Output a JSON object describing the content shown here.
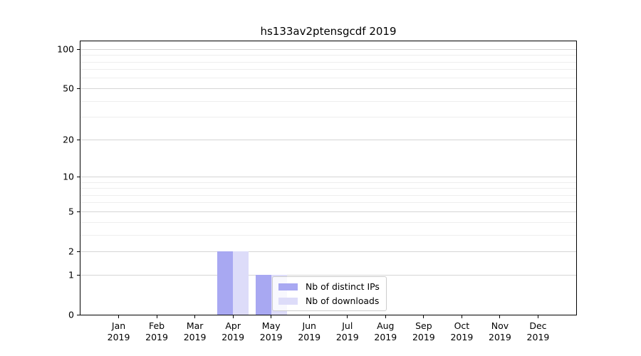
{
  "chart_data": {
    "type": "bar",
    "title": "hs133av2ptensgcdf 2019",
    "categories": [
      "Jan",
      "Feb",
      "Mar",
      "Apr",
      "May",
      "Jun",
      "Jul",
      "Aug",
      "Sep",
      "Oct",
      "Nov",
      "Dec"
    ],
    "category_year": "2019",
    "series": [
      {
        "name": "Nb of distinct IPs",
        "color": "#a8a8f2",
        "values": [
          0,
          0,
          0,
          2,
          1,
          0,
          0,
          0,
          0,
          0,
          0,
          0
        ]
      },
      {
        "name": "Nb of downloads",
        "color": "#dddcf9",
        "values": [
          0,
          0,
          0,
          2,
          1,
          0,
          0,
          0,
          0,
          0,
          0,
          0
        ]
      }
    ],
    "y_axis": {
      "scale": "log10(1+x)",
      "major_ticks": [
        0,
        1,
        2,
        5,
        10,
        20,
        50,
        100
      ],
      "minor_ticks": [
        3,
        4,
        6,
        7,
        8,
        9,
        30,
        40,
        60,
        70,
        80,
        90
      ],
      "range_top": 115
    },
    "xlabel": "",
    "ylabel": "",
    "grid": "horizontal major+minor",
    "legend_position": "lower center, overlapping May bar"
  }
}
